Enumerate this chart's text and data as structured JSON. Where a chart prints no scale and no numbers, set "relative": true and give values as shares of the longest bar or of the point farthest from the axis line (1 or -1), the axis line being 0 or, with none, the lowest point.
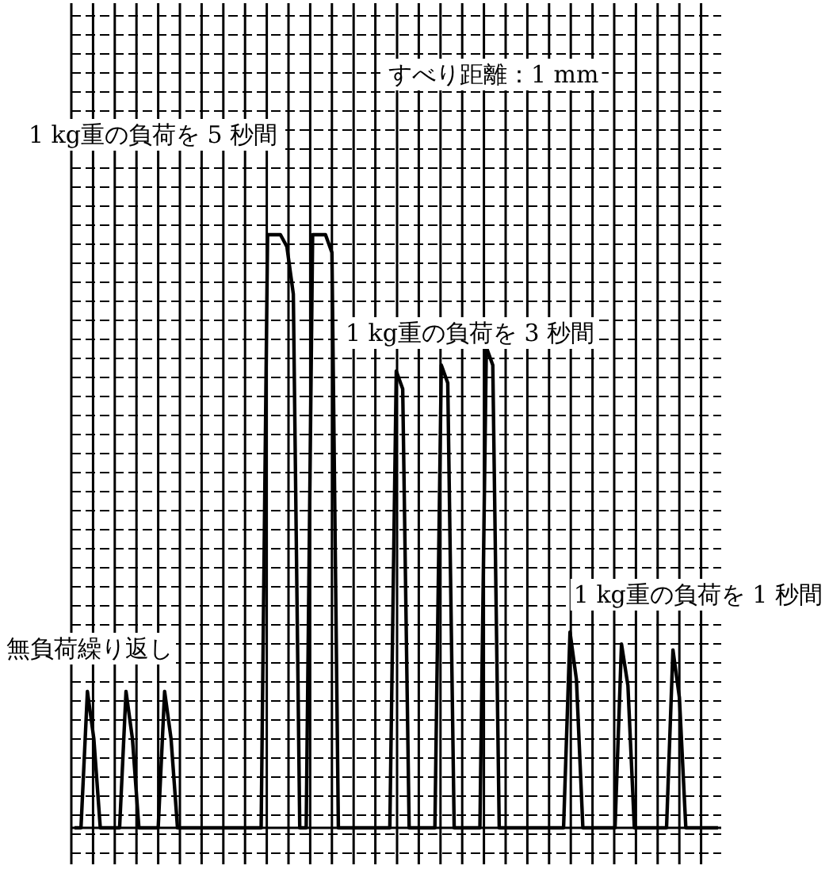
{
  "chart_data": {
    "type": "line",
    "relative": true,
    "grid": true,
    "annotations": [
      "すべり距離：1 mm",
      "1 kg重の負荷を 5 秒間",
      "1 kg重の負荷を 3 秒間",
      "1 kg重の負荷を 1 秒間",
      "無負荷繰り返し"
    ],
    "categories": [
      null,
      null,
      null,
      null,
      null,
      null,
      null,
      null,
      null,
      null,
      null,
      null,
      null,
      null,
      null,
      null,
      null,
      null,
      null,
      null,
      null,
      null,
      null,
      null,
      null,
      null,
      null,
      null,
      null,
      null,
      null,
      null,
      null,
      null,
      null,
      null,
      null,
      null,
      null,
      null,
      null,
      null,
      null,
      null,
      null,
      null,
      null,
      null,
      null,
      null,
      null,
      null,
      null,
      null,
      null,
      null,
      null,
      null,
      null,
      null,
      null,
      null,
      null,
      null,
      null,
      null,
      null,
      null,
      null,
      null,
      null,
      null,
      null,
      null,
      null,
      null,
      null,
      null,
      null,
      null,
      null,
      null,
      null,
      null,
      null,
      null,
      null,
      null,
      null,
      null,
      null,
      null,
      null,
      null,
      null,
      null,
      null,
      null,
      null,
      null,
      null
    ],
    "series": [
      {
        "color": "#000000",
        "values": [
          0,
          0,
          0.23,
          0.15,
          0,
          0,
          0,
          0,
          0.23,
          0.15,
          0,
          0,
          0,
          0,
          0.23,
          0.15,
          0,
          0,
          0,
          0,
          0,
          0,
          0,
          0,
          0,
          0,
          0,
          0,
          0,
          0,
          1,
          1,
          1,
          0.98,
          0.9,
          0,
          0,
          1,
          1,
          1,
          0.97,
          0,
          0,
          0,
          0,
          0,
          0,
          0,
          0,
          0,
          0.77,
          0.74,
          0,
          0,
          0,
          0,
          0,
          0.78,
          0.75,
          0,
          0,
          0,
          0,
          0,
          0.81,
          0.78,
          0,
          0,
          0,
          0,
          0,
          0,
          0,
          0,
          0,
          0,
          0,
          0.33,
          0.25,
          0,
          0,
          0,
          0,
          0,
          0,
          0.31,
          0.24,
          0,
          0,
          0,
          0,
          0,
          0,
          0.3,
          0.22,
          0,
          0,
          0,
          0,
          0,
          0
        ]
      }
    ]
  }
}
